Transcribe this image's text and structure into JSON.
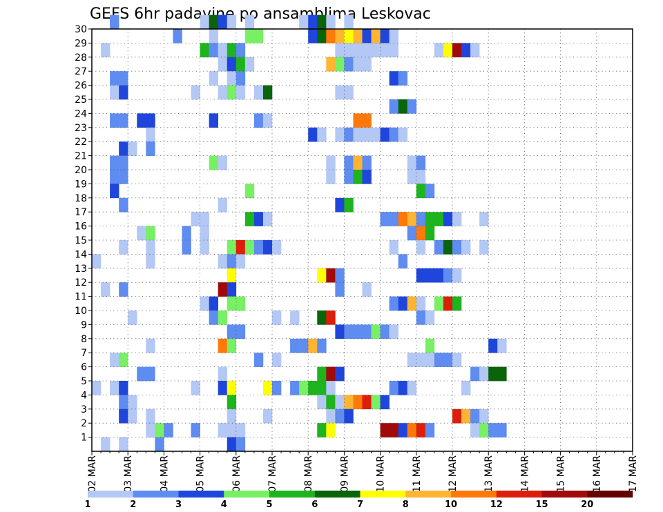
{
  "chart_data": {
    "type": "heatmap",
    "title": "GEFS 6hr padavine po ansamblima Leskovac",
    "xlabel": "",
    "ylabel": "",
    "x_ticks": [
      "02 MAR",
      "03 MAR",
      "04 MAR",
      "05 MAR",
      "06 MAR",
      "07 MAR",
      "08 MAR",
      "09 MAR",
      "10 MAR",
      "11 MAR",
      "12 MAR",
      "13 MAR",
      "14 MAR",
      "15 MAR",
      "16 MAR",
      "17 MAR"
    ],
    "x_range_steps": [
      0,
      60
    ],
    "y_ticks": [
      1,
      2,
      3,
      4,
      5,
      6,
      7,
      8,
      9,
      10,
      11,
      12,
      13,
      14,
      15,
      16,
      17,
      18,
      19,
      20,
      21,
      22,
      23,
      24,
      25,
      26,
      27,
      28,
      29,
      30
    ],
    "y_range": [
      0,
      30
    ],
    "grid": true,
    "colorbar": {
      "levels": [
        "1",
        "2",
        "3",
        "4",
        "5",
        "6",
        "7",
        "8",
        "10",
        "12",
        "15",
        "20"
      ],
      "colors": [
        "#b4c8f5",
        "#5f8cf0",
        "#1e46dc",
        "#78f064",
        "#1eb41e",
        "#0a640a",
        "#ffff00",
        "#ffb432",
        "#ff780a",
        "#dc1e0a",
        "#a00a0a",
        "#640000"
      ]
    },
    "cells": [
      [
        30,
        2,
        1
      ],
      [
        30,
        12,
        0
      ],
      [
        30,
        13,
        5
      ],
      [
        30,
        14,
        2
      ],
      [
        30,
        15,
        0
      ],
      [
        30,
        17,
        0
      ],
      [
        30,
        23,
        0
      ],
      [
        30,
        24,
        2
      ],
      [
        30,
        25,
        5
      ],
      [
        30,
        26,
        0
      ],
      [
        30,
        28,
        0
      ],
      [
        29,
        9,
        1
      ],
      [
        29,
        13,
        0
      ],
      [
        29,
        17,
        3
      ],
      [
        29,
        18,
        3
      ],
      [
        29,
        24,
        2
      ],
      [
        29,
        25,
        5
      ],
      [
        29,
        26,
        8
      ],
      [
        29,
        27,
        7
      ],
      [
        29,
        28,
        6
      ],
      [
        29,
        29,
        7
      ],
      [
        29,
        30,
        2
      ],
      [
        29,
        31,
        7
      ],
      [
        29,
        32,
        2
      ],
      [
        29,
        33,
        0
      ],
      [
        28,
        1,
        0
      ],
      [
        28,
        12,
        4
      ],
      [
        28,
        13,
        1
      ],
      [
        28,
        14,
        0
      ],
      [
        28,
        15,
        4
      ],
      [
        28,
        16,
        1
      ],
      [
        28,
        27,
        0
      ],
      [
        28,
        28,
        0
      ],
      [
        28,
        29,
        0
      ],
      [
        28,
        30,
        0
      ],
      [
        28,
        31,
        0
      ],
      [
        28,
        32,
        0
      ],
      [
        28,
        33,
        0
      ],
      [
        28,
        38,
        0
      ],
      [
        28,
        39,
        6
      ],
      [
        28,
        40,
        10
      ],
      [
        28,
        41,
        2
      ],
      [
        28,
        42,
        0
      ],
      [
        27,
        14,
        0
      ],
      [
        27,
        15,
        2
      ],
      [
        27,
        16,
        4
      ],
      [
        27,
        17,
        0
      ],
      [
        27,
        26,
        7
      ],
      [
        27,
        27,
        3
      ],
      [
        27,
        28,
        1
      ],
      [
        27,
        29,
        0
      ],
      [
        27,
        30,
        0
      ],
      [
        26,
        2,
        1
      ],
      [
        26,
        3,
        1
      ],
      [
        26,
        13,
        0
      ],
      [
        26,
        15,
        0
      ],
      [
        26,
        16,
        1
      ],
      [
        26,
        33,
        2
      ],
      [
        26,
        34,
        1
      ],
      [
        25,
        2,
        0
      ],
      [
        25,
        3,
        2
      ],
      [
        25,
        11,
        0
      ],
      [
        25,
        14,
        0
      ],
      [
        25,
        15,
        3
      ],
      [
        25,
        16,
        0
      ],
      [
        25,
        18,
        0
      ],
      [
        25,
        19,
        5
      ],
      [
        25,
        27,
        0
      ],
      [
        25,
        28,
        0
      ],
      [
        24,
        33,
        1
      ],
      [
        24,
        34,
        5
      ],
      [
        24,
        35,
        1
      ],
      [
        23,
        2,
        1
      ],
      [
        23,
        3,
        1
      ],
      [
        23,
        5,
        2
      ],
      [
        23,
        6,
        2
      ],
      [
        23,
        13,
        2
      ],
      [
        23,
        18,
        1
      ],
      [
        23,
        19,
        0
      ],
      [
        23,
        29,
        8
      ],
      [
        23,
        30,
        8
      ],
      [
        22,
        6,
        0
      ],
      [
        22,
        24,
        2
      ],
      [
        22,
        25,
        0
      ],
      [
        22,
        27,
        0
      ],
      [
        22,
        28,
        1
      ],
      [
        22,
        29,
        0
      ],
      [
        22,
        30,
        0
      ],
      [
        22,
        31,
        0
      ],
      [
        22,
        32,
        2
      ],
      [
        22,
        33,
        1
      ],
      [
        22,
        34,
        0
      ],
      [
        21,
        3,
        2
      ],
      [
        21,
        4,
        0
      ],
      [
        21,
        6,
        1
      ],
      [
        20,
        2,
        1
      ],
      [
        20,
        3,
        1
      ],
      [
        20,
        13,
        3
      ],
      [
        20,
        14,
        0
      ],
      [
        20,
        26,
        0
      ],
      [
        20,
        28,
        1
      ],
      [
        20,
        29,
        7
      ],
      [
        20,
        30,
        1
      ],
      [
        20,
        35,
        0
      ],
      [
        20,
        36,
        1
      ],
      [
        19,
        2,
        1
      ],
      [
        19,
        3,
        1
      ],
      [
        19,
        26,
        0
      ],
      [
        19,
        28,
        1
      ],
      [
        19,
        29,
        4
      ],
      [
        19,
        30,
        2
      ],
      [
        19,
        35,
        0
      ],
      [
        19,
        36,
        0
      ],
      [
        18,
        2,
        2
      ],
      [
        18,
        17,
        3
      ],
      [
        18,
        36,
        4
      ],
      [
        18,
        37,
        1
      ],
      [
        17,
        3,
        1
      ],
      [
        17,
        14,
        0
      ],
      [
        17,
        27,
        2
      ],
      [
        17,
        28,
        4
      ],
      [
        16,
        11,
        0
      ],
      [
        16,
        12,
        0
      ],
      [
        16,
        17,
        4
      ],
      [
        16,
        18,
        2
      ],
      [
        16,
        19,
        0
      ],
      [
        16,
        32,
        1
      ],
      [
        16,
        33,
        1
      ],
      [
        16,
        34,
        8
      ],
      [
        16,
        35,
        7
      ],
      [
        16,
        36,
        1
      ],
      [
        16,
        37,
        4
      ],
      [
        16,
        38,
        4
      ],
      [
        16,
        39,
        2
      ],
      [
        16,
        40,
        0
      ],
      [
        16,
        43,
        0
      ],
      [
        15,
        5,
        0
      ],
      [
        15,
        6,
        3
      ],
      [
        15,
        10,
        1
      ],
      [
        15,
        12,
        0
      ],
      [
        15,
        35,
        1
      ],
      [
        15,
        36,
        8
      ],
      [
        15,
        37,
        4
      ],
      [
        14,
        3,
        0
      ],
      [
        14,
        6,
        0
      ],
      [
        14,
        10,
        1
      ],
      [
        14,
        12,
        0
      ],
      [
        14,
        15,
        3
      ],
      [
        14,
        16,
        9
      ],
      [
        14,
        17,
        3
      ],
      [
        14,
        18,
        1
      ],
      [
        14,
        19,
        2
      ],
      [
        14,
        20,
        0
      ],
      [
        14,
        33,
        0
      ],
      [
        14,
        36,
        0
      ],
      [
        14,
        38,
        1
      ],
      [
        14,
        39,
        5
      ],
      [
        14,
        40,
        1
      ],
      [
        14,
        41,
        0
      ],
      [
        14,
        43,
        0
      ],
      [
        13,
        0,
        0
      ],
      [
        13,
        6,
        0
      ],
      [
        13,
        14,
        0
      ],
      [
        13,
        15,
        1
      ],
      [
        13,
        16,
        0
      ],
      [
        13,
        34,
        1
      ],
      [
        12,
        15,
        6
      ],
      [
        12,
        25,
        6
      ],
      [
        12,
        26,
        10
      ],
      [
        12,
        27,
        1
      ],
      [
        12,
        36,
        2
      ],
      [
        12,
        37,
        2
      ],
      [
        12,
        38,
        2
      ],
      [
        12,
        39,
        1
      ],
      [
        12,
        40,
        0
      ],
      [
        11,
        1,
        0
      ],
      [
        11,
        3,
        1
      ],
      [
        11,
        14,
        10
      ],
      [
        11,
        15,
        2
      ],
      [
        11,
        27,
        1
      ],
      [
        11,
        30,
        0
      ],
      [
        10,
        12,
        0
      ],
      [
        10,
        13,
        2
      ],
      [
        10,
        15,
        3
      ],
      [
        10,
        16,
        3
      ],
      [
        10,
        33,
        1
      ],
      [
        10,
        34,
        2
      ],
      [
        10,
        35,
        7
      ],
      [
        10,
        36,
        0
      ],
      [
        10,
        38,
        3
      ],
      [
        10,
        39,
        9
      ],
      [
        10,
        40,
        4
      ],
      [
        9,
        4,
        0
      ],
      [
        9,
        13,
        1
      ],
      [
        9,
        14,
        3
      ],
      [
        9,
        20,
        0
      ],
      [
        9,
        22,
        0
      ],
      [
        9,
        25,
        5
      ],
      [
        9,
        26,
        9
      ],
      [
        9,
        36,
        1
      ],
      [
        9,
        37,
        0
      ],
      [
        8,
        15,
        1
      ],
      [
        8,
        16,
        1
      ],
      [
        8,
        27,
        2
      ],
      [
        8,
        28,
        1
      ],
      [
        8,
        29,
        1
      ],
      [
        8,
        30,
        1
      ],
      [
        8,
        31,
        3
      ],
      [
        8,
        32,
        1
      ],
      [
        8,
        33,
        0
      ],
      [
        7,
        6,
        0
      ],
      [
        7,
        14,
        8
      ],
      [
        7,
        15,
        3
      ],
      [
        7,
        22,
        1
      ],
      [
        7,
        23,
        1
      ],
      [
        7,
        24,
        7
      ],
      [
        7,
        25,
        1
      ],
      [
        7,
        37,
        3
      ],
      [
        7,
        44,
        2
      ],
      [
        7,
        45,
        0
      ],
      [
        6,
        2,
        0
      ],
      [
        6,
        3,
        3
      ],
      [
        6,
        18,
        1
      ],
      [
        6,
        20,
        0
      ],
      [
        6,
        35,
        0
      ],
      [
        6,
        36,
        0
      ],
      [
        6,
        37,
        0
      ],
      [
        6,
        38,
        1
      ],
      [
        6,
        39,
        1
      ],
      [
        6,
        40,
        0
      ],
      [
        5,
        5,
        1
      ],
      [
        5,
        6,
        1
      ],
      [
        5,
        14,
        0
      ],
      [
        5,
        25,
        4
      ],
      [
        5,
        26,
        10
      ],
      [
        5,
        27,
        2
      ],
      [
        5,
        42,
        1
      ],
      [
        5,
        43,
        0
      ],
      [
        5,
        44,
        5
      ],
      [
        5,
        45,
        5
      ],
      [
        4,
        0,
        0
      ],
      [
        4,
        2,
        0
      ],
      [
        4,
        3,
        2
      ],
      [
        4,
        11,
        0
      ],
      [
        4,
        14,
        2
      ],
      [
        4,
        15,
        6
      ],
      [
        4,
        19,
        6
      ],
      [
        4,
        20,
        1
      ],
      [
        4,
        22,
        1
      ],
      [
        4,
        23,
        3
      ],
      [
        4,
        24,
        4
      ],
      [
        4,
        25,
        4
      ],
      [
        4,
        26,
        0
      ],
      [
        4,
        33,
        1
      ],
      [
        4,
        34,
        2
      ],
      [
        4,
        35,
        0
      ],
      [
        4,
        41,
        0
      ],
      [
        3,
        3,
        1
      ],
      [
        3,
        4,
        0
      ],
      [
        3,
        15,
        4
      ],
      [
        3,
        25,
        0
      ],
      [
        3,
        26,
        4
      ],
      [
        3,
        27,
        0
      ],
      [
        3,
        28,
        7
      ],
      [
        3,
        29,
        8
      ],
      [
        3,
        30,
        9
      ],
      [
        3,
        31,
        3
      ],
      [
        3,
        32,
        2
      ],
      [
        2,
        3,
        2
      ],
      [
        2,
        4,
        0
      ],
      [
        2,
        6,
        0
      ],
      [
        2,
        15,
        0
      ],
      [
        2,
        19,
        0
      ],
      [
        2,
        26,
        0
      ],
      [
        2,
        27,
        1
      ],
      [
        2,
        28,
        2
      ],
      [
        2,
        40,
        9
      ],
      [
        2,
        41,
        7
      ],
      [
        2,
        42,
        1
      ],
      [
        2,
        43,
        0
      ],
      [
        1,
        6,
        0
      ],
      [
        1,
        7,
        3
      ],
      [
        1,
        8,
        1
      ],
      [
        1,
        11,
        1
      ],
      [
        1,
        14,
        0
      ],
      [
        1,
        15,
        0
      ],
      [
        1,
        16,
        0
      ],
      [
        1,
        25,
        4
      ],
      [
        1,
        26,
        6
      ],
      [
        1,
        32,
        10
      ],
      [
        1,
        33,
        10
      ],
      [
        1,
        34,
        2
      ],
      [
        1,
        35,
        8
      ],
      [
        1,
        36,
        9
      ],
      [
        1,
        37,
        1
      ],
      [
        1,
        42,
        0
      ],
      [
        1,
        43,
        3
      ],
      [
        1,
        44,
        1
      ],
      [
        1,
        45,
        1
      ],
      [
        0,
        1,
        0
      ],
      [
        0,
        3,
        0
      ],
      [
        0,
        7,
        1
      ],
      [
        0,
        15,
        2
      ],
      [
        0,
        16,
        1
      ]
    ]
  }
}
